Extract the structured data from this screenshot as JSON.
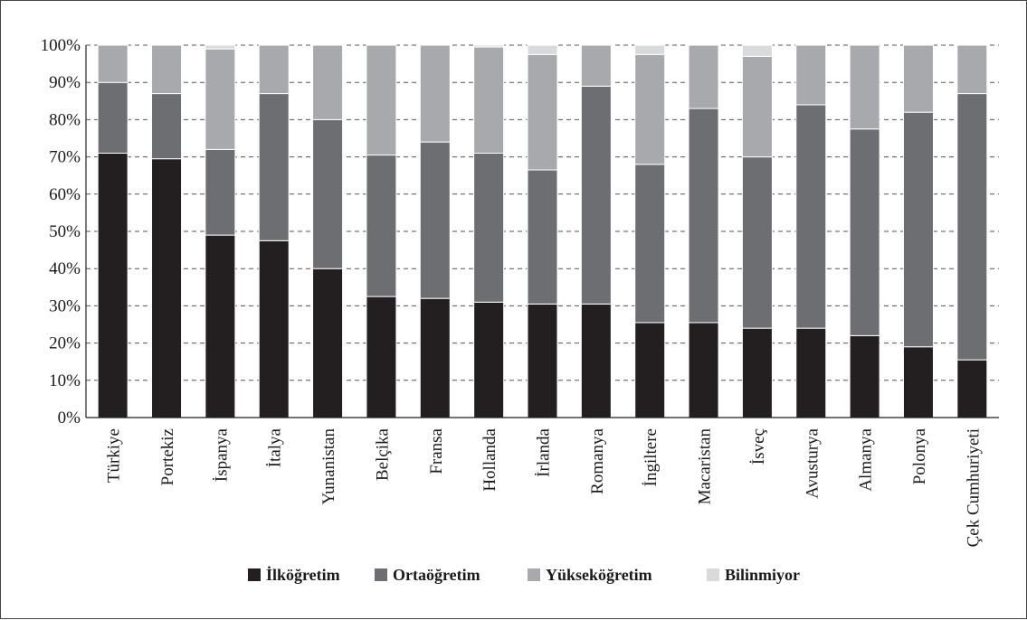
{
  "chart_data": {
    "type": "bar",
    "stacked": true,
    "yticks": [
      "0%",
      "10%",
      "20%",
      "30%",
      "40%",
      "50%",
      "60%",
      "70%",
      "80%",
      "90%",
      "100%"
    ],
    "ylim": [
      0,
      100
    ],
    "grid": true,
    "legend_position": "bottom",
    "categories": [
      "Türkiye",
      "Portekiz",
      "İspanya",
      "İtalya",
      "Yunanistan",
      "Belçika",
      "Fransa",
      "Hollanda",
      "İrlanda",
      "Romanya",
      "İngiltere",
      "Macaristan",
      "İsveç",
      "Avusturya",
      "Almanya",
      "Polonya",
      "Çek Cumhuriyeti"
    ],
    "series": [
      {
        "name": "İlköğretim",
        "color": "#231f20",
        "values": [
          71,
          69.5,
          49,
          47.5,
          40,
          32.5,
          32,
          31,
          30.5,
          30.5,
          25.5,
          25.5,
          24,
          24,
          22,
          19,
          15.5
        ]
      },
      {
        "name": "Ortaöğretim",
        "color": "#6d6e71",
        "values": [
          19,
          17.5,
          23,
          39.5,
          40,
          38,
          42,
          40,
          36,
          58.5,
          42.5,
          57.5,
          46,
          60,
          55.5,
          63,
          71.5
        ]
      },
      {
        "name": "Yükseköğretim",
        "color": "#a7a9ac",
        "values": [
          10,
          13,
          27,
          13,
          20,
          29.5,
          26,
          28.5,
          31,
          11,
          29.5,
          17,
          27,
          16,
          22.5,
          18,
          13
        ]
      },
      {
        "name": "Bilinmiyor",
        "color": "#d9dadb",
        "values": [
          0,
          0,
          1,
          0,
          0,
          0,
          0,
          0.5,
          2.5,
          0,
          2.5,
          0,
          3,
          0,
          0,
          0,
          0
        ]
      }
    ]
  }
}
